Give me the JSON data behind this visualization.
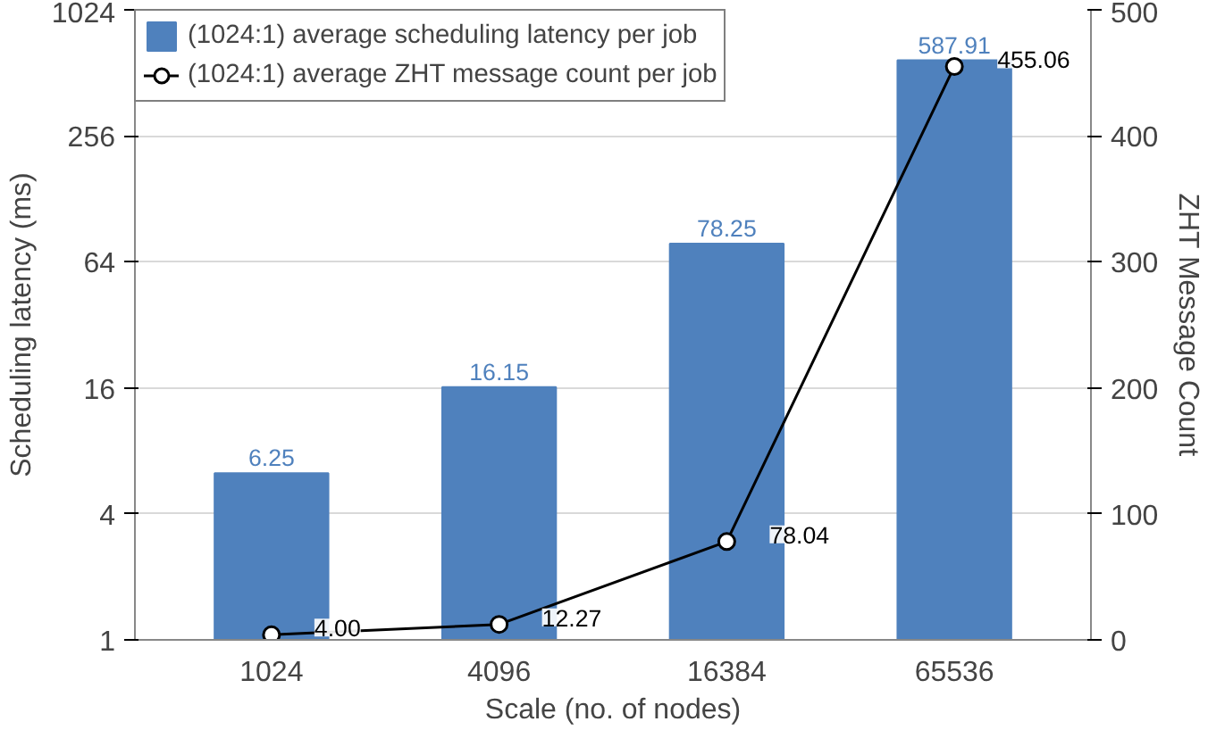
{
  "chart_data": {
    "type": "bar",
    "xlabel": "Scale (no. of nodes)",
    "ylabel": "Scheduling latency (ms)",
    "y2label": "ZHT Message Count",
    "categories": [
      "1024",
      "4096",
      "16384",
      "65536"
    ],
    "series": [
      {
        "name": "(1024:1) average scheduling latency per job",
        "color": "#4f81bd",
        "values": [
          6.25,
          16.15,
          78.25,
          587.91
        ],
        "value_labels": [
          "6.25",
          "16.15",
          "78.25",
          "587.91"
        ]
      },
      {
        "name": "(1024:1) average ZHT message count per job",
        "type": "line",
        "axis": "y2",
        "color": "#000000",
        "marker": "circle",
        "values": [
          4.0,
          12.27,
          78.04,
          455.06
        ],
        "value_labels": [
          "4.00",
          "12.27",
          "78.04",
          "455.06"
        ]
      }
    ],
    "log": "y",
    "ylim": [
      1,
      1024
    ],
    "yticks": [
      1,
      4,
      16,
      64,
      256,
      1024
    ],
    "y2lim": [
      0,
      500
    ],
    "y2ticks": [
      0,
      100,
      200,
      300,
      400,
      500
    ],
    "grid": "y",
    "legend": "top"
  }
}
